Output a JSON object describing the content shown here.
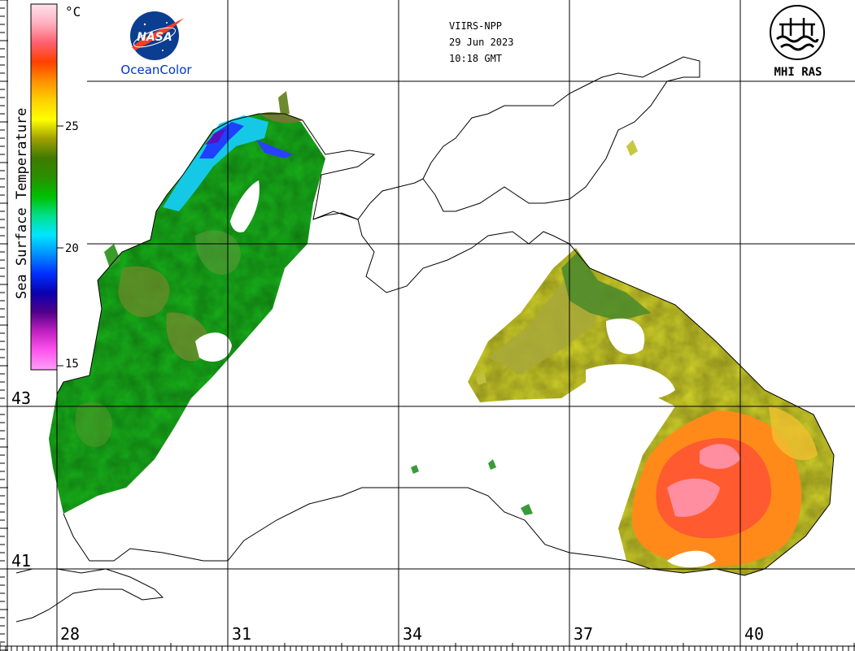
{
  "header": {
    "sensor": "VIIRS-NPP",
    "date": "29 Jun 2023",
    "time": "10:18 GMT"
  },
  "logos": {
    "nasa_text": "NASA",
    "nasa_caption": "OceanColor",
    "mhi_caption": "MHI RAS"
  },
  "colorbar": {
    "title": "Sea Surface Temperature",
    "unit": "°C",
    "ticks": [
      "25",
      "20",
      "15"
    ],
    "stops": [
      "#ff9ff5",
      "#ff55ee",
      "#c020c0",
      "#50008a",
      "#0a00b0",
      "#0030ff",
      "#0090ff",
      "#00e6ff",
      "#00e08a",
      "#00c000",
      "#2a8f00",
      "#3f7a00",
      "#a0a000",
      "#ffff00",
      "#ffd000",
      "#ff9000",
      "#ff4000",
      "#ff6070",
      "#ffb0c0",
      "#ffe0ea"
    ]
  },
  "grid": {
    "lon_labels": [
      "28",
      "31",
      "34",
      "37",
      "40"
    ],
    "lat_labels": [
      "43",
      "41"
    ]
  },
  "colors": {
    "nasa_blue": "#0b3d91",
    "nasa_red": "#fc3d21",
    "caption_blue": "#0033cc"
  }
}
